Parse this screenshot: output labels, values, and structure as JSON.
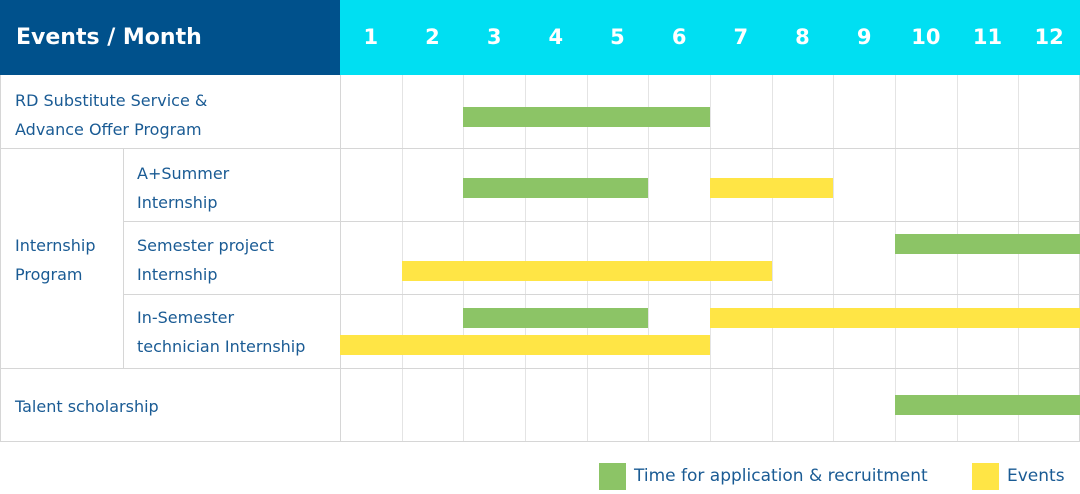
{
  "chart_data": {
    "type": "bar",
    "orientation": "horizontal-gantt",
    "header_label": "Events / Month",
    "categories": [
      "1",
      "2",
      "3",
      "4",
      "5",
      "6",
      "7",
      "8",
      "9",
      "10",
      "11",
      "12"
    ],
    "rows": [
      {
        "group": "",
        "label": "RD Substitute Service & Advance Offer Program"
      },
      {
        "group": "Internship Program",
        "label": "A+Summer Internship"
      },
      {
        "group": "Internship Program",
        "label": "Semester project Internship"
      },
      {
        "group": "Internship Program",
        "label": "In-Semester technician Internship"
      },
      {
        "group": "",
        "label": "Talent scholarship"
      }
    ],
    "label_lines": {
      "rd": [
        "RD Substitute Service &",
        "Advance Offer Program"
      ],
      "group": [
        "Internship",
        "Program"
      ],
      "summer": [
        "A+Summer",
        "Internship"
      ],
      "semester": [
        "Semester project",
        "Internship"
      ],
      "insem": [
        "In-Semester",
        "technician Internship"
      ],
      "talent": "Talent scholarship"
    },
    "bars": [
      {
        "row": 0,
        "series": "application",
        "start": 3,
        "end": 6
      },
      {
        "row": 1,
        "series": "application",
        "start": 3,
        "end": 5
      },
      {
        "row": 1,
        "series": "events",
        "start": 7,
        "end": 8
      },
      {
        "row": 2,
        "series": "application",
        "start": 10,
        "end": 12
      },
      {
        "row": 2,
        "series": "events",
        "start": 2,
        "end": 7
      },
      {
        "row": 3,
        "series": "application",
        "start": 3,
        "end": 5
      },
      {
        "row": 3,
        "series": "events",
        "start": 7,
        "end": 12
      },
      {
        "row": 3,
        "series": "events",
        "start": 1,
        "end": 6
      },
      {
        "row": 4,
        "series": "application",
        "start": 10,
        "end": 12
      }
    ],
    "legend": {
      "position": "bottom-right",
      "items": [
        {
          "key": "application",
          "label": "Time for application & recruitment",
          "color": "#8cc466"
        },
        {
          "key": "events",
          "label": "Events",
          "color": "#ffe545"
        }
      ]
    },
    "colors": {
      "header_left": "#00518c",
      "header_right": "#00dff2",
      "text": "#1a5b94"
    }
  }
}
